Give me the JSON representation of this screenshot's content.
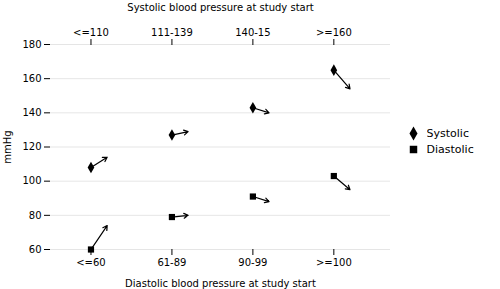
{
  "chart_data": {
    "type": "arrow",
    "xlabel": "Diastolic blood pressure at study start",
    "x2label": "Systolic blood pressure at study start",
    "ylabel": "mmHg",
    "categories": [
      "<=60",
      "61-89",
      "90-99",
      ">=100"
    ],
    "top_categories": [
      "<=110",
      "111-139",
      "140-15",
      ">=160"
    ],
    "series": [
      {
        "name": "Systolic",
        "marker": "diamond",
        "start": [
          108,
          127,
          143,
          165
        ],
        "end": [
          114,
          129,
          140,
          154
        ]
      },
      {
        "name": "Diastolic",
        "marker": "square",
        "start": [
          60,
          79,
          91,
          103
        ],
        "end": [
          74,
          80,
          88,
          95
        ]
      }
    ],
    "color": "#000000",
    "ylim": [
      60,
      180
    ],
    "yticks": [
      60,
      80,
      100,
      120,
      140,
      160,
      180
    ],
    "grid": true,
    "legend": "right"
  }
}
